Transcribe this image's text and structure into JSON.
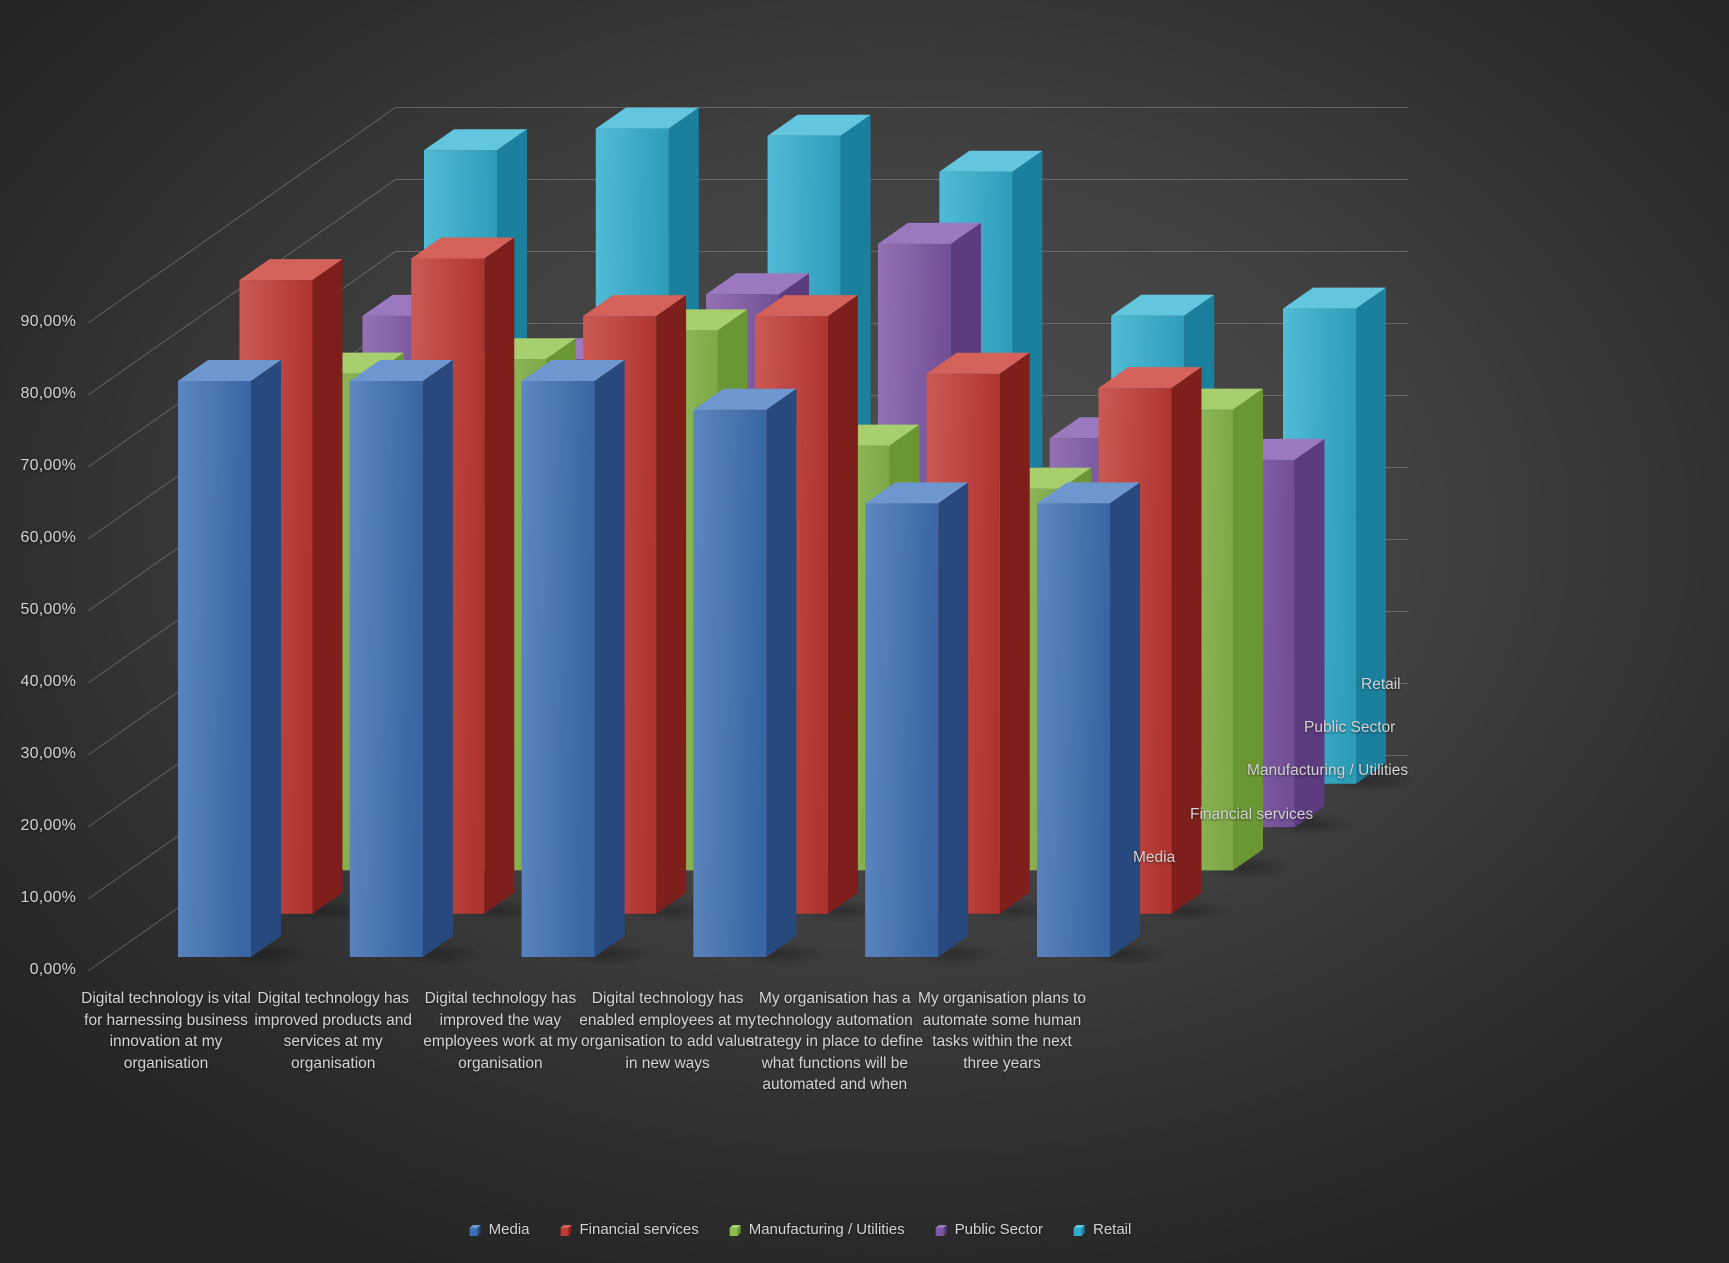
{
  "chart_data": {
    "type": "bar",
    "variant": "3d-clustered-column",
    "title": "",
    "categories": [
      "Digital technology is vital for harnessing business innovation at my organisation",
      "Digital technology has improved products and services at my organisation",
      "Digital technology has improved the way employees work at my organisation",
      "Digital technology has enabled employees at my organisation to add value in new ways",
      "My organisation has a technology automation strategy in place to define what functions will be automated and when",
      "My organisation plans to automate some human tasks within the next three years"
    ],
    "series": [
      {
        "name": "Media",
        "color": "#3E70B5",
        "color_top": "#6E97CF",
        "color_side": "#28497E",
        "values": [
          80,
          80,
          80,
          76,
          63,
          63
        ]
      },
      {
        "name": "Financial services",
        "color": "#C23A34",
        "color_top": "#D4625B",
        "color_side": "#7E1F1C",
        "values": [
          88,
          91,
          83,
          83,
          75,
          73
        ]
      },
      {
        "name": "Manufacturing / Utilities",
        "color": "#8CBB4E",
        "color_top": "#A8CF6D",
        "color_side": "#6B9634",
        "values": [
          69,
          71,
          75,
          59,
          53,
          64
        ]
      },
      {
        "name": "Public Sector",
        "color": "#7E57A5",
        "color_top": "#9B79BE",
        "color_side": "#5C3B7E",
        "values": [
          71,
          65,
          74,
          81,
          54,
          51
        ]
      },
      {
        "name": "Retail",
        "color": "#31AECE",
        "color_top": "#62C6DE",
        "color_side": "#1B7F9E",
        "values": [
          88,
          91,
          90,
          85,
          65,
          66
        ]
      }
    ],
    "value_axis": {
      "unit": "%",
      "min": 0,
      "max": 90,
      "ticks": [
        "0,00%",
        "10,00%",
        "20,00%",
        "30,00%",
        "40,00%",
        "50,00%",
        "60,00%",
        "70,00%",
        "80,00%",
        "90,00%"
      ]
    },
    "depth_axis_labels": [
      "Media",
      "Financial services",
      "Manufacturing / Utilities",
      "Public Sector",
      "Retail"
    ],
    "legend": {
      "position": "bottom",
      "items": [
        "Media",
        "Financial services",
        "Manufacturing / Utilities",
        "Public Sector",
        "Retail"
      ]
    },
    "grid": true,
    "gridline_color": "#909090",
    "text_color": "#D6D6D6",
    "background_center": "#4F4F4F",
    "background_edge": "#242424"
  }
}
